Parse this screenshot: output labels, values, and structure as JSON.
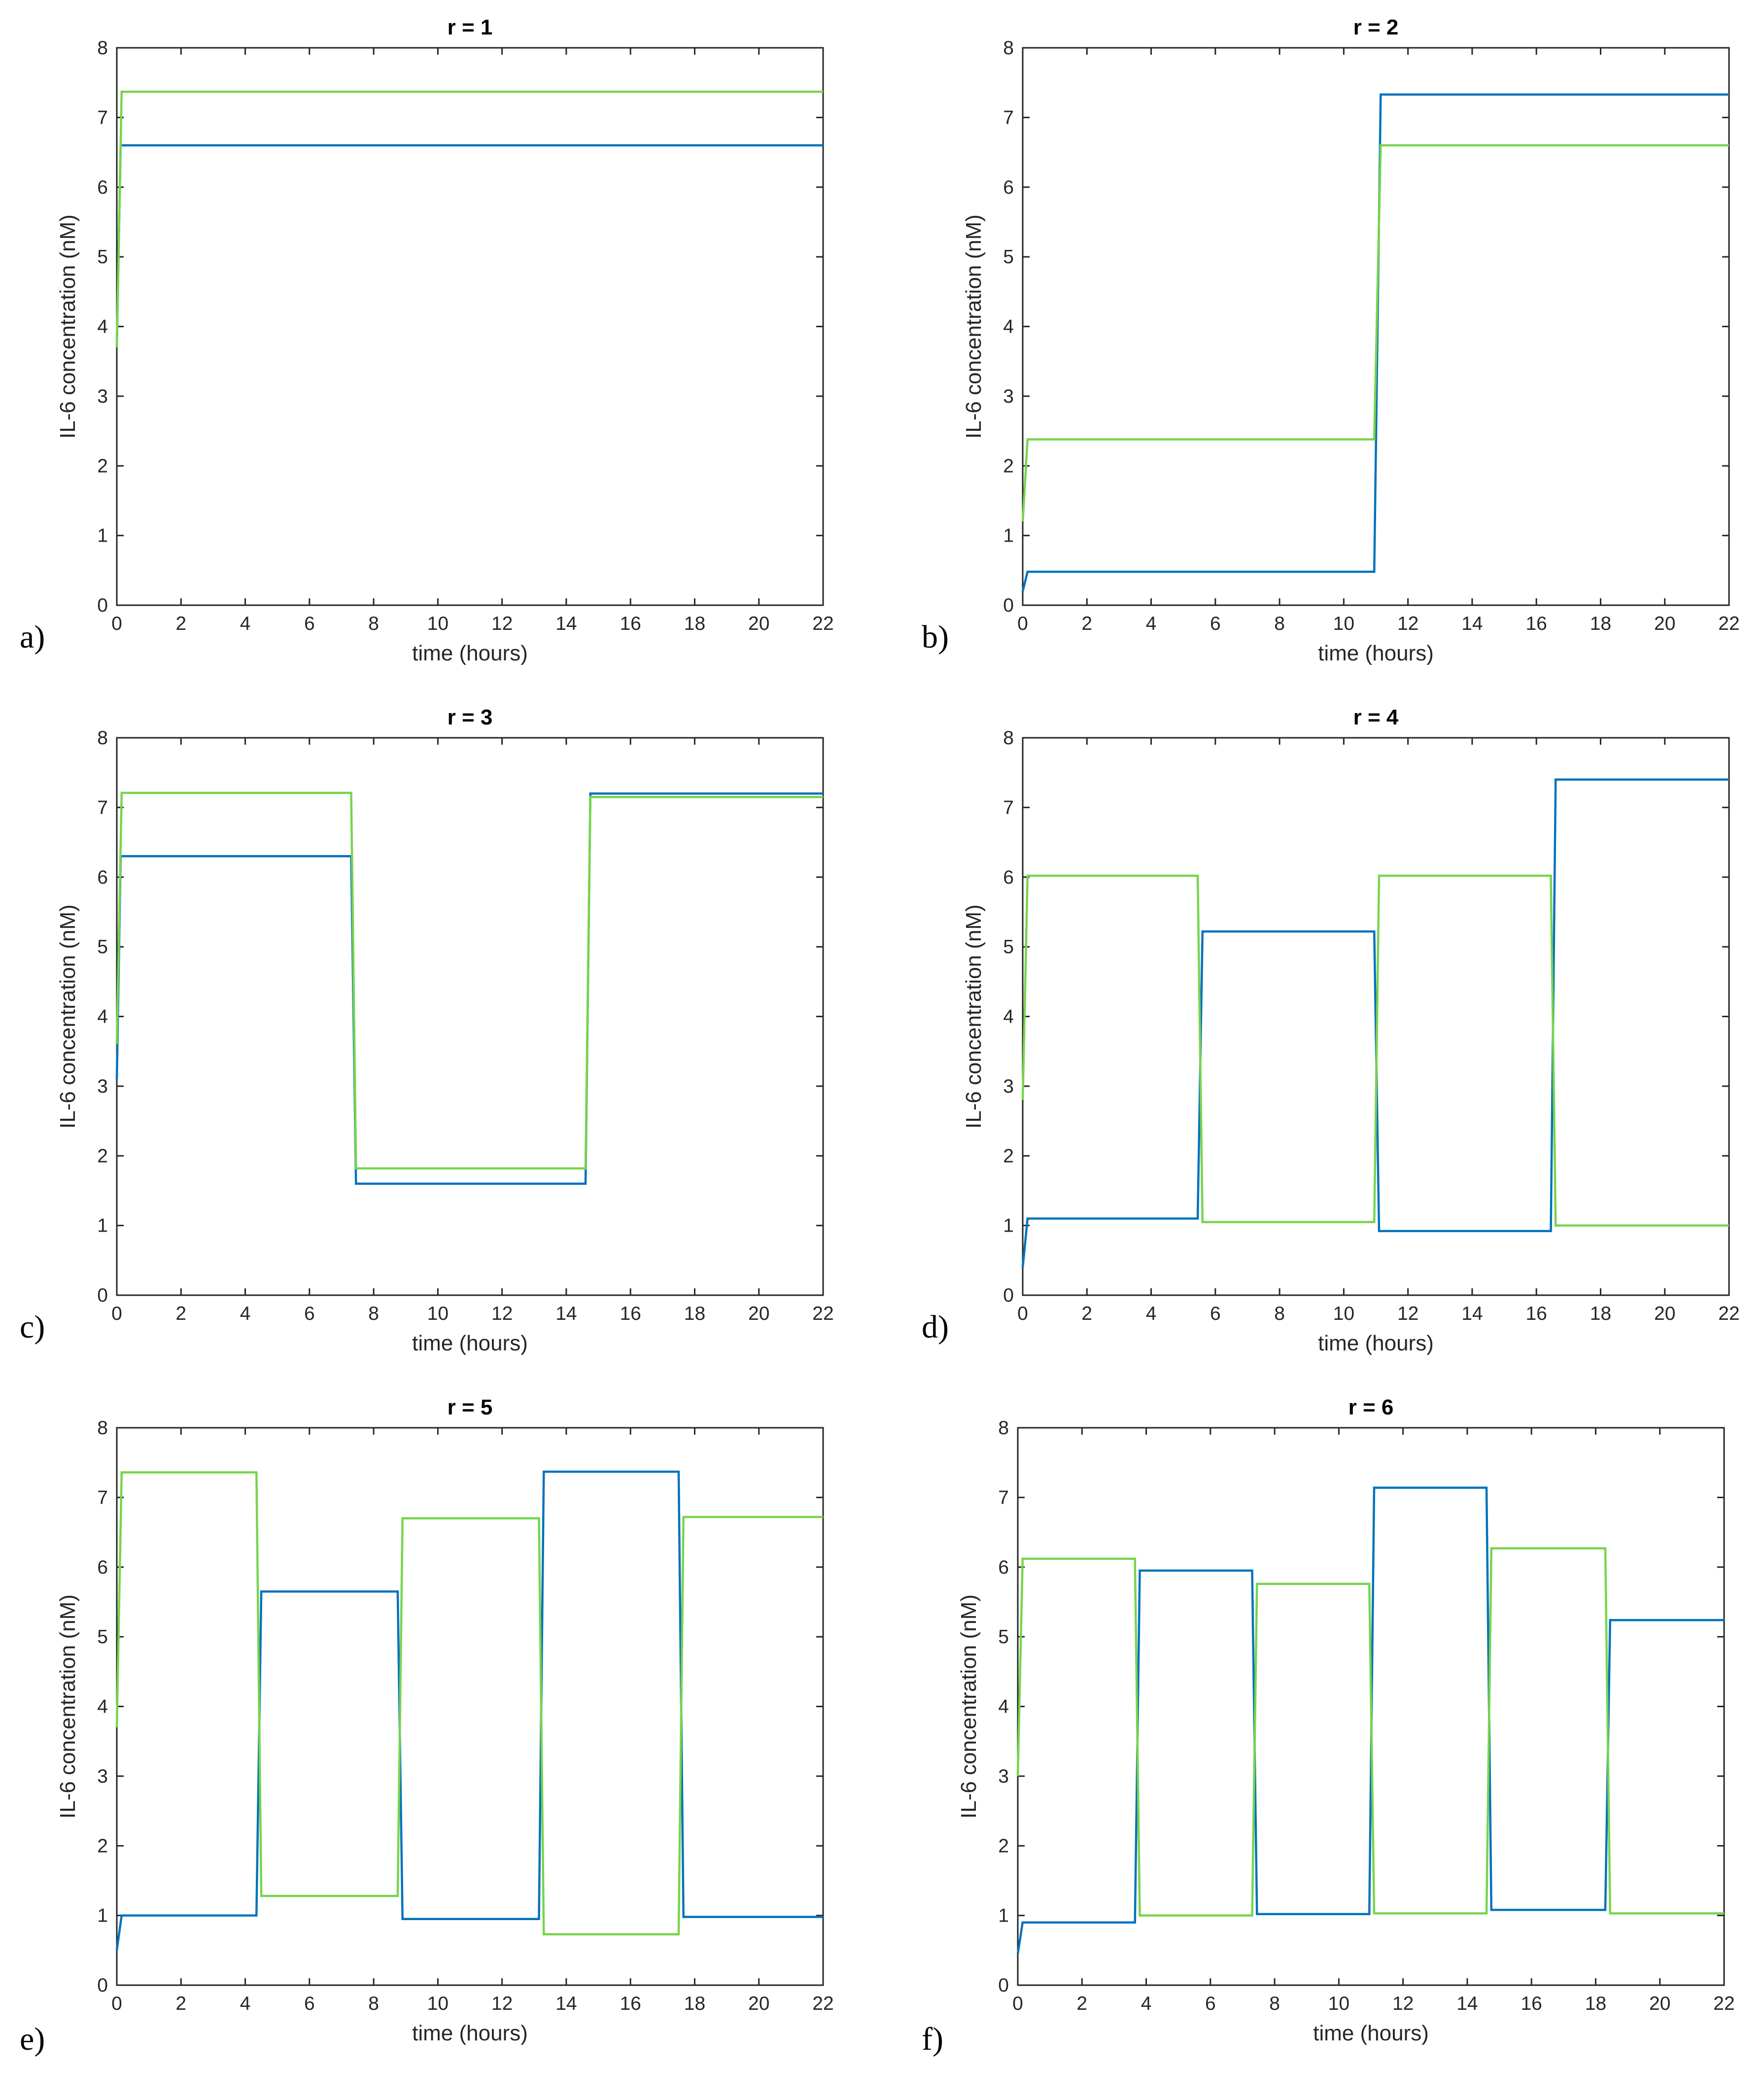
{
  "colors": {
    "blue": "#0072bd",
    "green": "#77d44a",
    "axis": "#262626"
  },
  "chart_data": [
    {
      "panel_label": "a)",
      "type": "line",
      "title": "r = 1",
      "xlabel": "time (hours)",
      "ylabel": "IL-6 concentration (nM)",
      "xlim": [
        0,
        22
      ],
      "ylim": [
        0,
        8
      ],
      "xticks": [
        0,
        2,
        4,
        6,
        8,
        10,
        12,
        14,
        16,
        18,
        20,
        22
      ],
      "yticks": [
        0,
        1,
        2,
        3,
        4,
        5,
        6,
        7,
        8
      ],
      "series": [
        {
          "name": "blue",
          "x": [
            0,
            0.12,
            22
          ],
          "y": [
            3.7,
            6.6,
            6.6
          ]
        },
        {
          "name": "green",
          "x": [
            0,
            0.15,
            22
          ],
          "y": [
            3.7,
            7.37,
            7.37
          ]
        }
      ]
    },
    {
      "panel_label": "b)",
      "type": "line",
      "title": "r = 2",
      "xlabel": "time (hours)",
      "ylabel": "IL-6 concentration (nM)",
      "xlim": [
        0,
        22
      ],
      "ylim": [
        0,
        8
      ],
      "xticks": [
        0,
        2,
        4,
        6,
        8,
        10,
        12,
        14,
        16,
        18,
        20,
        22
      ],
      "yticks": [
        0,
        1,
        2,
        3,
        4,
        5,
        6,
        7,
        8
      ],
      "series": [
        {
          "name": "blue",
          "x": [
            0,
            0.15,
            10.95,
            11.15,
            22
          ],
          "y": [
            0.2,
            0.48,
            0.48,
            7.33,
            7.33
          ]
        },
        {
          "name": "green",
          "x": [
            0,
            0.15,
            10.95,
            11.15,
            22
          ],
          "y": [
            1.2,
            2.38,
            2.38,
            6.6,
            6.6
          ]
        }
      ]
    },
    {
      "panel_label": "c)",
      "type": "line",
      "title": "r = 3",
      "xlabel": "time (hours)",
      "ylabel": "IL-6 concentration (nM)",
      "xlim": [
        0,
        22
      ],
      "ylim": [
        0,
        8
      ],
      "xticks": [
        0,
        2,
        4,
        6,
        8,
        10,
        12,
        14,
        16,
        18,
        20,
        22
      ],
      "yticks": [
        0,
        1,
        2,
        3,
        4,
        5,
        6,
        7,
        8
      ],
      "series": [
        {
          "name": "blue",
          "x": [
            0,
            0.12,
            7.3,
            7.45,
            14.6,
            14.75,
            22
          ],
          "y": [
            3.1,
            6.3,
            6.3,
            1.6,
            1.6,
            7.2,
            7.2
          ]
        },
        {
          "name": "green",
          "x": [
            0,
            0.15,
            7.3,
            7.45,
            14.6,
            14.75,
            22
          ],
          "y": [
            3.6,
            7.21,
            7.21,
            1.82,
            1.82,
            7.15,
            7.15
          ]
        }
      ]
    },
    {
      "panel_label": "d)",
      "type": "line",
      "title": "r = 4",
      "xlabel": "time (hours)",
      "ylabel": "IL-6 concentration (nM)",
      "xlim": [
        0,
        22
      ],
      "ylim": [
        0,
        8
      ],
      "xticks": [
        0,
        2,
        4,
        6,
        8,
        10,
        12,
        14,
        16,
        18,
        20,
        22
      ],
      "yticks": [
        0,
        1,
        2,
        3,
        4,
        5,
        6,
        7,
        8
      ],
      "series": [
        {
          "name": "blue",
          "x": [
            0,
            0.15,
            5.45,
            5.6,
            10.95,
            11.1,
            16.45,
            16.6,
            22
          ],
          "y": [
            0.4,
            1.1,
            1.1,
            5.22,
            5.22,
            0.92,
            0.92,
            7.4,
            7.4
          ]
        },
        {
          "name": "green",
          "x": [
            0,
            0.15,
            5.45,
            5.6,
            10.95,
            11.1,
            16.45,
            16.6,
            22
          ],
          "y": [
            2.8,
            6.02,
            6.02,
            1.05,
            1.05,
            6.02,
            6.02,
            1.0,
            1.0
          ]
        }
      ]
    },
    {
      "panel_label": "e)",
      "type": "line",
      "title": "r = 5",
      "xlabel": "time (hours)",
      "ylabel": "IL-6 concentration (nM)",
      "xlim": [
        0,
        22
      ],
      "ylim": [
        0,
        8
      ],
      "xticks": [
        0,
        2,
        4,
        6,
        8,
        10,
        12,
        14,
        16,
        18,
        20,
        22
      ],
      "yticks": [
        0,
        1,
        2,
        3,
        4,
        5,
        6,
        7,
        8
      ],
      "series": [
        {
          "name": "blue",
          "x": [
            0,
            0.15,
            4.35,
            4.5,
            8.75,
            8.9,
            13.15,
            13.3,
            17.5,
            17.65,
            22
          ],
          "y": [
            0.5,
            1.0,
            1.0,
            5.65,
            5.65,
            0.95,
            0.95,
            7.37,
            7.37,
            0.98,
            0.98
          ]
        },
        {
          "name": "green",
          "x": [
            0,
            0.15,
            4.35,
            4.5,
            8.75,
            8.9,
            13.15,
            13.3,
            17.5,
            17.65,
            22
          ],
          "y": [
            3.7,
            7.36,
            7.36,
            1.28,
            1.28,
            6.7,
            6.7,
            0.73,
            0.73,
            6.72,
            6.72
          ]
        }
      ]
    },
    {
      "panel_label": "f)",
      "type": "line",
      "title": "r = 6",
      "xlabel": "time (hours)",
      "ylabel": "IL-6 concentration (nM)",
      "xlim": [
        0,
        22
      ],
      "ylim": [
        0,
        8
      ],
      "xticks": [
        0,
        2,
        4,
        6,
        8,
        10,
        12,
        14,
        16,
        18,
        20,
        22
      ],
      "yticks": [
        0,
        1,
        2,
        3,
        4,
        5,
        6,
        7,
        8
      ],
      "series": [
        {
          "name": "blue",
          "x": [
            0,
            0.15,
            3.65,
            3.8,
            7.3,
            7.45,
            10.95,
            11.1,
            14.6,
            14.75,
            18.3,
            18.45,
            22
          ],
          "y": [
            0.45,
            0.9,
            0.9,
            5.95,
            5.95,
            1.02,
            1.02,
            7.14,
            7.14,
            1.08,
            1.08,
            5.24,
            5.24
          ]
        },
        {
          "name": "green",
          "x": [
            0,
            0.15,
            3.65,
            3.8,
            7.3,
            7.45,
            10.95,
            11.1,
            14.6,
            14.75,
            18.3,
            18.45,
            22
          ],
          "y": [
            3.0,
            6.12,
            6.12,
            1.0,
            1.0,
            5.76,
            5.76,
            1.03,
            1.03,
            6.27,
            6.27,
            1.03,
            1.03
          ]
        }
      ]
    }
  ]
}
